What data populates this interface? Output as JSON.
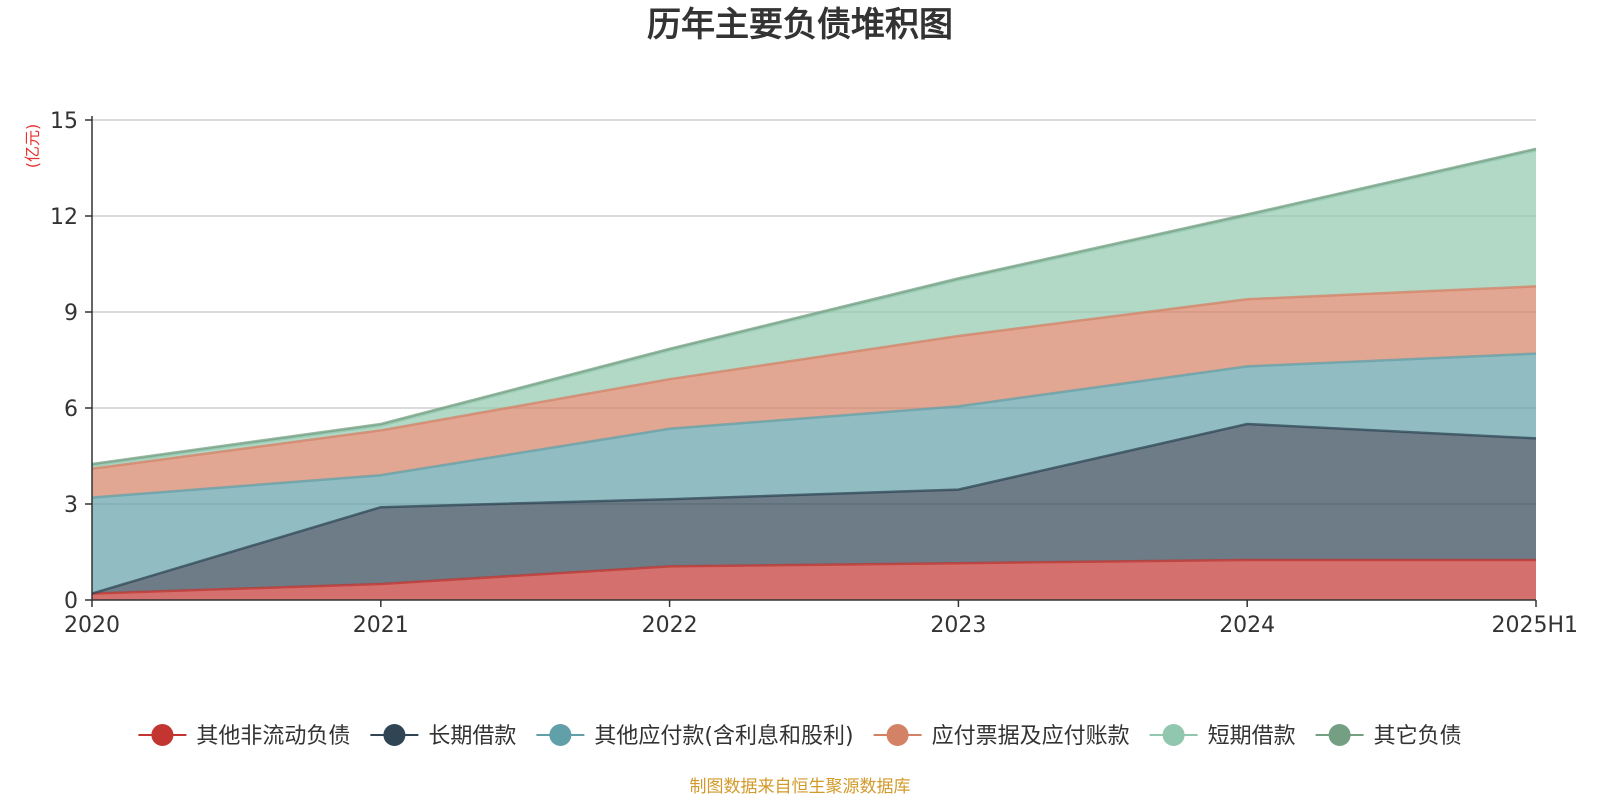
{
  "chart_data": {
    "type": "area",
    "stacked": true,
    "title": "历年主要负债堆积图",
    "xlabel": "",
    "ylabel": "(亿元)",
    "categories": [
      "2020",
      "2021",
      "2022",
      "2023",
      "2024",
      "2025H1"
    ],
    "ylim": [
      0,
      15
    ],
    "yticks": [
      0,
      3,
      6,
      9,
      12,
      15
    ],
    "grid": true,
    "legend_position": "bottom",
    "series": [
      {
        "name": "其他非流动负债",
        "color": "#c23531",
        "values": [
          0.2,
          0.5,
          1.05,
          1.15,
          1.25,
          1.25
        ]
      },
      {
        "name": "长期借款",
        "color": "#2f4554",
        "values": [
          0.0,
          2.4,
          2.1,
          2.3,
          4.25,
          3.8
        ]
      },
      {
        "name": "其他应付款(含利息和股利)",
        "color": "#61a0a8",
        "values": [
          3.0,
          1.0,
          2.2,
          2.6,
          1.8,
          2.65
        ]
      },
      {
        "name": "应付票据及应付账款",
        "color": "#d48265",
        "values": [
          0.9,
          1.4,
          1.55,
          2.2,
          2.1,
          2.1
        ]
      },
      {
        "name": "短期借款",
        "color": "#91c7ae",
        "values": [
          0.1,
          0.15,
          0.9,
          1.75,
          2.6,
          4.25
        ]
      },
      {
        "name": "其它负债",
        "color": "#749f83",
        "values": [
          0.05,
          0.05,
          0.05,
          0.05,
          0.05,
          0.05
        ]
      }
    ],
    "source_note": "制图数据来自恒生聚源数据库"
  }
}
